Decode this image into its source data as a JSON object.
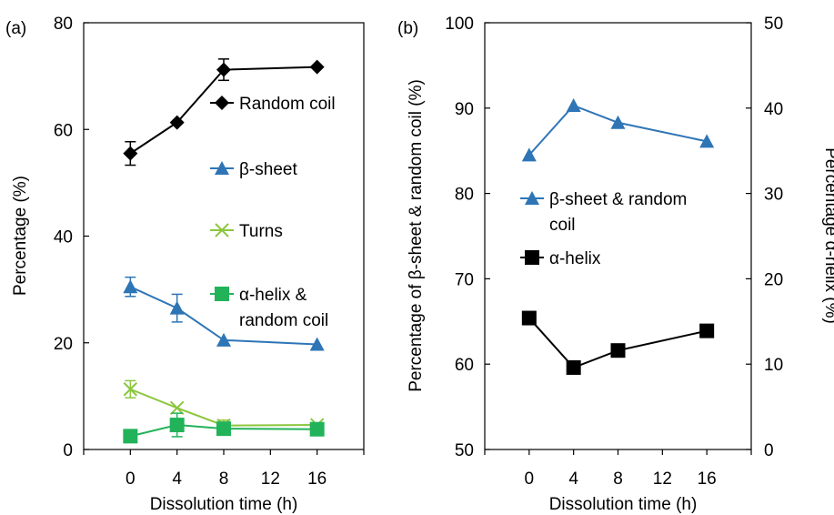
{
  "chart_data": [
    {
      "type": "line",
      "panel_label": "(a)",
      "xlabel": "Dissolution time (h)",
      "ylabel": "Percentage (%)",
      "xlim": [
        -4,
        20
      ],
      "ylim": [
        0,
        80
      ],
      "xticks": [
        "0",
        "4",
        "8",
        "12",
        "16"
      ],
      "yticks": [
        "0",
        "20",
        "40",
        "60",
        "80"
      ],
      "series": [
        {
          "name": "Random coil",
          "color": "#000000",
          "marker": "diamond",
          "x": [
            0,
            4,
            8,
            16
          ],
          "y": [
            55.5,
            61.3,
            71.2,
            71.7
          ],
          "err": [
            2.2,
            0,
            2,
            0
          ]
        },
        {
          "name": "β-sheet",
          "color": "#2e75b6",
          "marker": "triangle",
          "x": [
            0,
            4,
            8,
            16
          ],
          "y": [
            30.5,
            26.5,
            20.5,
            19.7
          ],
          "err": [
            1.8,
            2.6,
            0,
            0
          ]
        },
        {
          "name": "Turns",
          "color": "#8cc63f",
          "marker": "x",
          "x": [
            0,
            4,
            8,
            16
          ],
          "y": [
            11.3,
            7.8,
            4.5,
            4.6
          ],
          "err": [
            1.6,
            0,
            1,
            0
          ]
        },
        {
          "name": "α-helix & random coil",
          "name_lines": [
            "α-helix &",
            "random coil"
          ],
          "color": "#22b35a",
          "marker": "square",
          "x": [
            0,
            4,
            8,
            16
          ],
          "y": [
            2.5,
            4.6,
            3.9,
            3.8
          ],
          "err": [
            0,
            2.2,
            0,
            0
          ]
        }
      ]
    },
    {
      "type": "line",
      "panel_label": "(b)",
      "xlabel": "Dissolution time (h)",
      "ylabel": "Percentage of β-sheet & random coil (%)",
      "y2label": "Percentage α-helix (%)",
      "xlim": [
        -4,
        20
      ],
      "ylim": [
        50,
        100
      ],
      "y2lim": [
        0,
        50
      ],
      "xticks": [
        "0",
        "4",
        "8",
        "12",
        "16"
      ],
      "yticks": [
        "50",
        "60",
        "70",
        "80",
        "90",
        "100"
      ],
      "y2ticks": [
        "0",
        "10",
        "20",
        "30",
        "40",
        "50"
      ],
      "series": [
        {
          "name": "β-sheet & random coil",
          "name_lines": [
            "β-sheet & random",
            "coil"
          ],
          "color": "#2e75b6",
          "marker": "triangle",
          "axis": "left",
          "x": [
            0,
            4,
            8,
            16
          ],
          "y": [
            84.5,
            90.3,
            88.3,
            86.1
          ]
        },
        {
          "name": "α-helix",
          "name_lines": [
            "α-helix"
          ],
          "color": "#000000",
          "marker": "square",
          "axis": "right",
          "x": [
            0,
            4,
            8,
            16
          ],
          "y": [
            15.4,
            9.6,
            11.6,
            13.9
          ]
        }
      ]
    }
  ]
}
